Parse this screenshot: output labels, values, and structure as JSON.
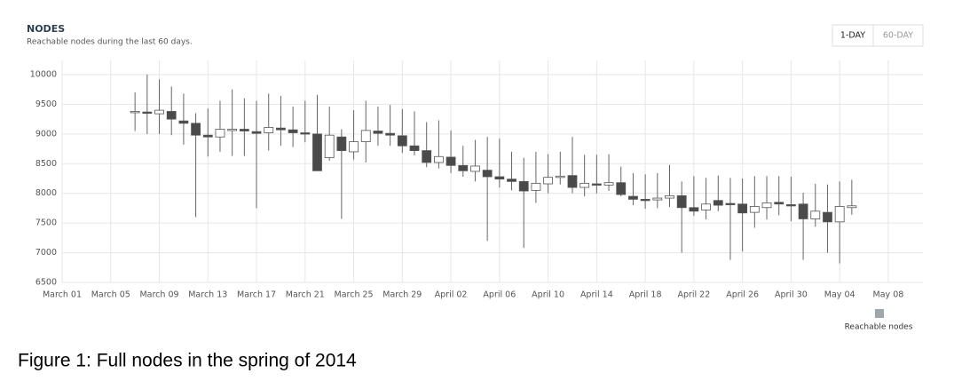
{
  "chart_data": {
    "type": "candlestick",
    "title": "NODES",
    "subtitle": "Reachable nodes during the last 60 days.",
    "categories": [
      "March 01",
      null,
      null,
      null,
      "March 05",
      null,
      null,
      null,
      "March 09",
      null,
      null,
      null,
      "March 13",
      null,
      null,
      null,
      "March 17",
      null,
      null,
      null,
      "March 21",
      null,
      null,
      null,
      "March 25",
      null,
      null,
      null,
      "March 29",
      null,
      null,
      null,
      "April 02",
      null,
      null,
      null,
      "April 06",
      null,
      null,
      null,
      "April 10",
      null,
      null,
      null,
      "April 14",
      null,
      null,
      null,
      "April 18",
      null,
      null,
      null,
      "April 22",
      null,
      null,
      null,
      "April 26",
      null,
      null,
      null,
      "April 30",
      null,
      null,
      null,
      "May 04",
      null,
      null,
      null,
      "May 08"
    ],
    "series": [
      {
        "name": "Reachable nodes",
        "color": "#9ea7ab",
        "up_color": "#ffffff",
        "down_color": "#4a4a4a",
        "open": [
          null,
          null,
          null,
          null,
          null,
          null,
          9370,
          9370,
          9340,
          9380,
          9220,
          9180,
          8980,
          8950,
          9070,
          9080,
          9040,
          9020,
          9100,
          9070,
          9020,
          9000,
          8600,
          8950,
          8700,
          8870,
          9050,
          9010,
          8970,
          8800,
          8720,
          8520,
          8610,
          8470,
          8370,
          8390,
          8280,
          8240,
          8200,
          8050,
          8160,
          8280,
          8300,
          8100,
          8160,
          8140,
          8180,
          7950,
          7900,
          7890,
          7920,
          7960,
          7760,
          7720,
          7880,
          7830,
          7820,
          7680,
          7760,
          7850,
          7810,
          7820,
          7570,
          7680,
          7520,
          7760,
          null,
          null,
          null
        ],
        "high": [
          null,
          null,
          null,
          null,
          null,
          null,
          9700,
          10000,
          9920,
          9800,
          9680,
          9350,
          9430,
          9560,
          9750,
          9600,
          9560,
          9680,
          9640,
          9460,
          9560,
          9660,
          9460,
          9080,
          9400,
          9560,
          9460,
          9490,
          9420,
          9380,
          9200,
          9230,
          9060,
          8800,
          8900,
          8950,
          8920,
          8700,
          8600,
          8700,
          8660,
          8700,
          8950,
          8650,
          8650,
          8660,
          8450,
          8340,
          8320,
          8340,
          8480,
          8200,
          8290,
          8260,
          8300,
          8260,
          8250,
          8290,
          8290,
          8290,
          8280,
          8010,
          8160,
          8150,
          8200,
          8230,
          null,
          null,
          null
        ],
        "low": [
          null,
          null,
          null,
          null,
          null,
          null,
          9050,
          9000,
          9000,
          8980,
          8820,
          7600,
          8620,
          8700,
          8630,
          8630,
          7750,
          8720,
          8800,
          8780,
          8860,
          8380,
          8550,
          7570,
          8570,
          8520,
          8800,
          8800,
          8680,
          8640,
          8440,
          8420,
          8340,
          8280,
          8200,
          7200,
          8100,
          8050,
          7080,
          7840,
          8000,
          8150,
          8000,
          7950,
          8000,
          8040,
          7950,
          7800,
          7740,
          7750,
          7770,
          7000,
          7620,
          7560,
          7700,
          6880,
          7020,
          7420,
          7560,
          7630,
          7530,
          6880,
          7440,
          7000,
          6820,
          7640,
          null,
          null,
          null
        ],
        "close": [
          null,
          null,
          null,
          null,
          null,
          null,
          9380,
          9350,
          9400,
          9250,
          9180,
          8980,
          8950,
          9080,
          9080,
          9050,
          9010,
          9110,
          9070,
          9020,
          9010,
          8380,
          8980,
          8720,
          8870,
          9060,
          9010,
          8980,
          8800,
          8720,
          8520,
          8620,
          8470,
          8380,
          8460,
          8280,
          8240,
          8200,
          8040,
          8170,
          8270,
          8290,
          8100,
          8170,
          8140,
          8180,
          7980,
          7900,
          7890,
          7920,
          7960,
          7760,
          7700,
          7820,
          7800,
          7810,
          7670,
          7780,
          7840,
          7820,
          7800,
          7570,
          7700,
          7520,
          7780,
          7790,
          null,
          null,
          null
        ]
      }
    ],
    "ylim": [
      6500,
      10000
    ],
    "yticks": [
      6500,
      7000,
      7500,
      8000,
      8500,
      9000,
      9500,
      10000
    ],
    "grid": true,
    "legend": "bottom-right"
  },
  "buttons": [
    "1-DAY",
    "60-DAY"
  ],
  "caption": "Figure 1: Full nodes in the spring of 2014"
}
